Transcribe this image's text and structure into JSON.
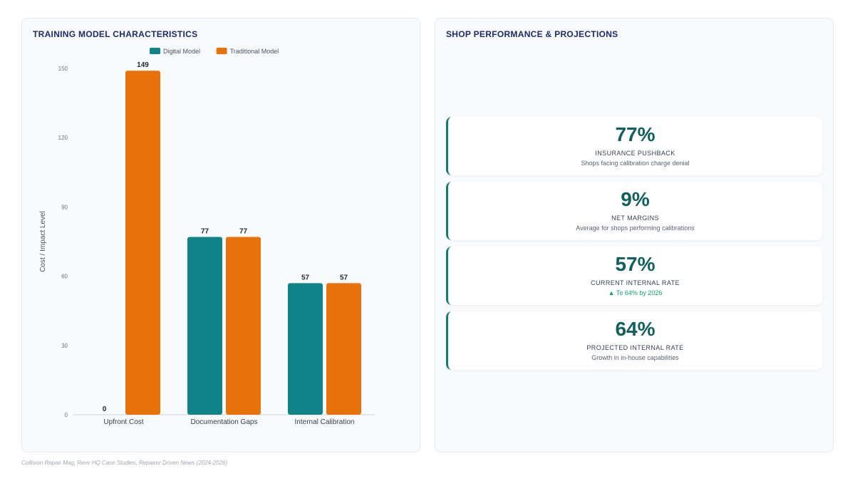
{
  "chart_panel": {
    "title": "TRAINING MODEL CHARACTERISTICS"
  },
  "chart_data": {
    "type": "bar",
    "title": "TRAINING MODEL CHARACTERISTICS",
    "categories": [
      "Upfront Cost",
      "Documentation Gaps",
      "Internal Calibration"
    ],
    "series": [
      {
        "name": "Digital Model",
        "values": [
          0,
          77,
          57
        ],
        "color": "#0e8388"
      },
      {
        "name": "Traditional Model",
        "values": [
          149,
          77,
          57
        ],
        "color": "#e8710a"
      }
    ],
    "ylabel": "Cost / Impact Level",
    "xlabel": "",
    "ylim": [
      0,
      150
    ],
    "yticks": [
      0,
      30,
      60,
      90,
      120,
      150
    ],
    "data_labels": true,
    "legend": "top-center",
    "grid": false
  },
  "kpi_panel": {
    "title": "SHOP PERFORMANCE & PROJECTIONS",
    "cards": [
      {
        "value": "77%",
        "label": "INSURANCE PUSHBACK",
        "sub": "Shops facing calibration charge denial",
        "trend": false
      },
      {
        "value": "9%",
        "label": "NET MARGINS",
        "sub": "Average for shops performing calibrations",
        "trend": false
      },
      {
        "value": "57%",
        "label": "CURRENT INTERNAL RATE",
        "sub": "▲ To 64% by 2026",
        "trend": true
      },
      {
        "value": "64%",
        "label": "PROJECTED INTERNAL RATE",
        "sub": "Growth in in-house capabilities",
        "trend": false
      }
    ]
  },
  "footer": {
    "source": "Collision Repair Mag, Revv HQ Case Studies, Repairer Driven News (2024-2026)"
  },
  "colors": {
    "accent": "#157a74",
    "title": "#1e2a6b",
    "digital": "#0e8388",
    "traditional": "#e8710a",
    "trend_up": "#10a36a"
  }
}
